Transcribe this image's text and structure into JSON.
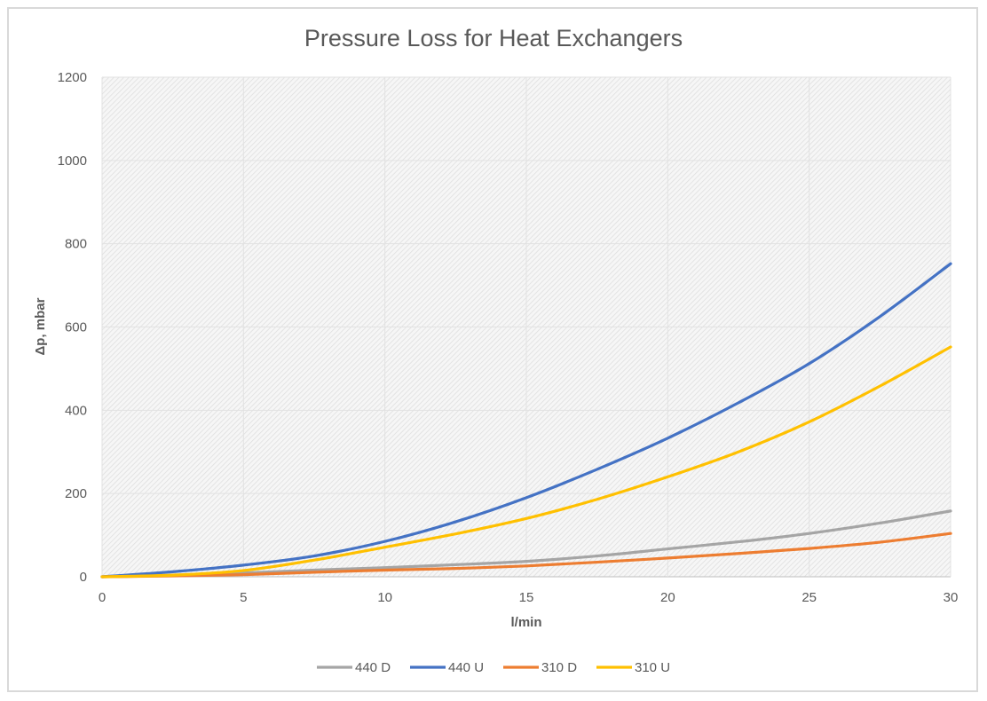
{
  "chart_data": {
    "type": "line",
    "title": "Pressure Loss for Heat Exchangers",
    "xlabel": "l/min",
    "ylabel": "Δp, mbar",
    "xlim": [
      0,
      30
    ],
    "ylim": [
      0,
      1200
    ],
    "xticks": [
      0,
      5,
      10,
      15,
      20,
      25,
      30
    ],
    "yticks": [
      0,
      200,
      400,
      600,
      800,
      1000,
      1200
    ],
    "grid": true,
    "legend_position": "bottom",
    "x": [
      0,
      2.5,
      5,
      7.5,
      10,
      12.5,
      15,
      17.5,
      20,
      22.5,
      25,
      27.5,
      30
    ],
    "series": [
      {
        "name": "440 D",
        "color": "#a5a5a5",
        "values": [
          0,
          3,
          9,
          16,
          22,
          29,
          37,
          50,
          67,
          84,
          104,
          129,
          158
        ]
      },
      {
        "name": "440 U",
        "color": "#4472c4",
        "values": [
          0,
          12,
          28,
          50,
          85,
          132,
          190,
          258,
          333,
          418,
          512,
          625,
          752
        ]
      },
      {
        "name": "310 D",
        "color": "#ed7d31",
        "values": [
          0,
          2,
          5,
          11,
          16,
          20,
          26,
          35,
          45,
          56,
          68,
          83,
          104
        ]
      },
      {
        "name": "310 U",
        "color": "#ffc000",
        "values": [
          0,
          4,
          15,
          40,
          71,
          103,
          140,
          186,
          240,
          300,
          372,
          458,
          552
        ]
      }
    ]
  }
}
